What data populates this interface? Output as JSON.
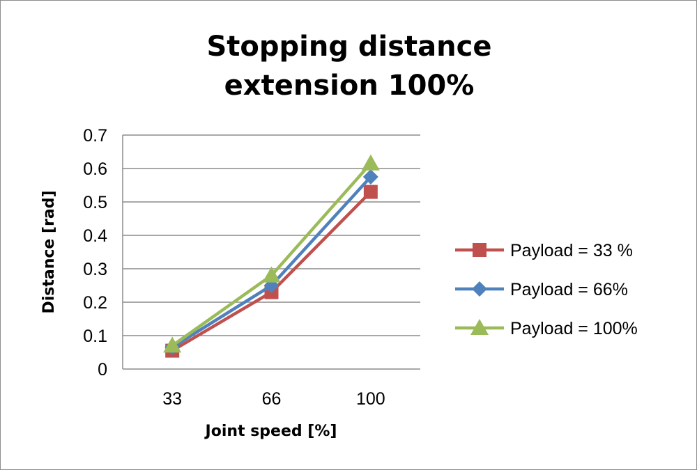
{
  "chart_data": {
    "type": "line",
    "title_line1": "Stopping distance",
    "title_line2": "extension 100%",
    "xlabel": "Joint speed [%]",
    "ylabel": "Distance [rad]",
    "categories": [
      "33",
      "66",
      "100"
    ],
    "ylim": [
      0,
      0.7
    ],
    "yticks": [
      "0",
      "0.1",
      "0.2",
      "0.3",
      "0.4",
      "0.5",
      "0.6",
      "0.7"
    ],
    "grid": true,
    "legend_position": "right",
    "series": [
      {
        "name": "Payload = 33 %",
        "values": [
          0.055,
          0.23,
          0.53
        ],
        "color": "#c0504d",
        "marker": "square"
      },
      {
        "name": "Payload =  66%",
        "values": [
          0.065,
          0.25,
          0.575
        ],
        "color": "#4f81bd",
        "marker": "diamond"
      },
      {
        "name": "Payload =  100%",
        "values": [
          0.07,
          0.28,
          0.615
        ],
        "color": "#9bbb59",
        "marker": "triangle"
      }
    ]
  }
}
